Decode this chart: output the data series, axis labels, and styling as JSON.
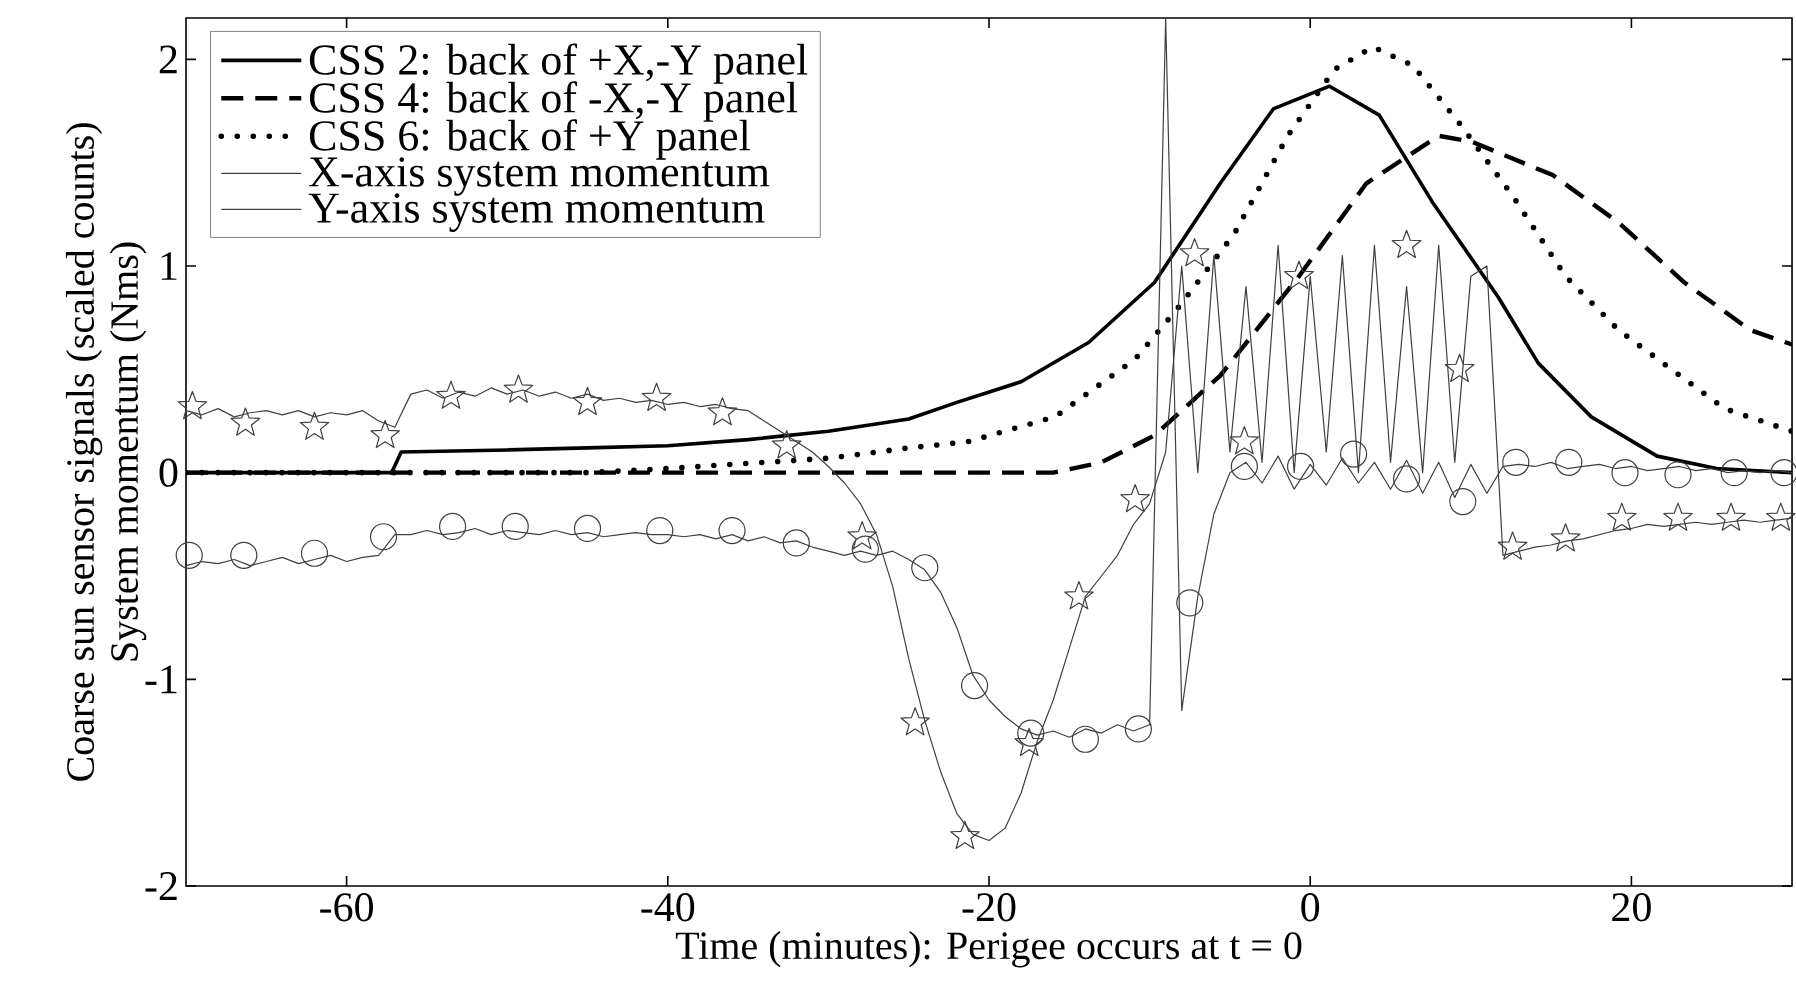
{
  "chart_data": {
    "type": "line",
    "xlabel": "Time (minutes): Perigee occurs at t = 0",
    "ylabel": [
      "Coarse sun sensor signals (scaled counts)",
      "System momentum (Nms)"
    ],
    "xlim": [
      -70,
      30
    ],
    "ylim": [
      -2,
      2.2
    ],
    "xticks": [
      -60,
      -40,
      -20,
      0,
      20
    ],
    "yticks": [
      -2,
      -1,
      0,
      1,
      2
    ],
    "grid": false,
    "legend": "top left",
    "series": [
      {
        "name": "CSS 2: back of +X,-Y panel",
        "color": "#000000",
        "line_style": "solid",
        "marker": "none",
        "x": [
          -70,
          -57.2,
          -56.6,
          -50,
          -45,
          -40,
          -35,
          -30,
          -25,
          -22,
          -18,
          -13.8,
          -9.7,
          -5.6,
          -2.3,
          1.2,
          4.3,
          7.6,
          11.7,
          14.2,
          17.5,
          21.6,
          25.3,
          30
        ],
        "values": [
          0,
          0,
          0.1,
          0.11,
          0.12,
          0.13,
          0.16,
          0.2,
          0.26,
          0.34,
          0.44,
          0.63,
          0.92,
          1.4,
          1.76,
          1.87,
          1.73,
          1.31,
          0.85,
          0.53,
          0.27,
          0.08,
          0.02,
          0
        ]
      },
      {
        "name": "CSS 4: back of -X,-Y panel",
        "color": "#000000",
        "line_style": "dashed",
        "marker": "none",
        "x": [
          -70,
          -16,
          -13,
          -9.7,
          -5.6,
          -0.7,
          3.5,
          8,
          10.1,
          12.6,
          15.1,
          19.2,
          23.3,
          27.4,
          30
        ],
        "values": [
          0,
          0,
          0.05,
          0.18,
          0.47,
          0.95,
          1.4,
          1.63,
          1.6,
          1.52,
          1.44,
          1.21,
          0.92,
          0.69,
          0.62
        ]
      },
      {
        "name": "CSS 6: back of +Y panel",
        "color": "#000000",
        "line_style": "dotted",
        "marker": "none",
        "x": [
          -70,
          -45,
          -40,
          -30,
          -25,
          -21.3,
          -15.9,
          -10.9,
          -8.1,
          -4.7,
          -1.4,
          1.5,
          3.9,
          6.4,
          9.3,
          12.6,
          15.9,
          19.2,
          22.5,
          25.8,
          30
        ],
        "values": [
          0,
          0,
          0.02,
          0.07,
          0.12,
          0.15,
          0.27,
          0.55,
          0.81,
          1.16,
          1.63,
          1.95,
          2.06,
          1.97,
          1.69,
          1.34,
          0.95,
          0.69,
          0.5,
          0.31,
          0.2
        ]
      },
      {
        "color": "#404040",
        "line_style": "solid",
        "marker": "none",
        "x": [
          -70,
          -69,
          -68,
          -67,
          -66,
          -65,
          -64,
          -63,
          -62,
          -61,
          -60,
          -59,
          -58,
          -57,
          -56,
          -55,
          -54,
          -53,
          -52,
          -51,
          -50,
          -49,
          -48,
          -47,
          -46,
          -45,
          -44,
          -43,
          -42,
          -41,
          -40,
          -39,
          -38,
          -37,
          -36,
          -35,
          -34,
          -33,
          -32,
          -31,
          -30,
          -29,
          -28,
          -27,
          -26,
          -25,
          -24,
          -23,
          -22,
          -21,
          -20,
          -19,
          -18,
          -17,
          -16,
          -15,
          -14,
          -13,
          -12,
          -11,
          -10,
          -9,
          -8,
          -7,
          -6,
          -5,
          -4,
          -3,
          -2,
          -1,
          0,
          1,
          2,
          3,
          4,
          5,
          6,
          7,
          8,
          9,
          10,
          11,
          12,
          13,
          14,
          15,
          16,
          17,
          18,
          19,
          20,
          21,
          22,
          23,
          24,
          25,
          26,
          27,
          28,
          29,
          30
        ],
        "values": [
          -0.45,
          -0.43,
          -0.44,
          -0.42,
          -0.45,
          -0.43,
          -0.41,
          -0.44,
          -0.42,
          -0.4,
          -0.43,
          -0.41,
          -0.4,
          -0.3,
          -0.3,
          -0.28,
          -0.3,
          -0.29,
          -0.27,
          -0.3,
          -0.28,
          -0.29,
          -0.3,
          -0.28,
          -0.3,
          -0.29,
          -0.31,
          -0.3,
          -0.29,
          -0.3,
          -0.3,
          -0.31,
          -0.3,
          -0.32,
          -0.3,
          -0.33,
          -0.31,
          -0.34,
          -0.33,
          -0.36,
          -0.38,
          -0.4,
          -0.38,
          -0.4,
          -0.38,
          -0.42,
          -0.47,
          -0.58,
          -0.75,
          -0.98,
          -1.1,
          -1.18,
          -1.24,
          -1.27,
          -1.25,
          -1.28,
          -1.24,
          -1.26,
          -1.22,
          -1.25,
          -1.22,
          2.2,
          -1.15,
          -0.6,
          -0.2,
          0,
          0.05,
          -0.05,
          0.08,
          -0.08,
          0.04,
          -0.06,
          0.07,
          -0.05,
          0.05,
          -0.08,
          0.06,
          -0.1,
          0.05,
          -0.12,
          0.04,
          -0.1,
          0.03,
          0.04,
          0.03,
          0.05,
          0.02,
          0.03,
          0.04,
          0.02,
          0.03,
          0.01,
          0.02,
          0.03,
          0.01,
          0.02,
          0,
          0.01,
          0,
          0.01,
          0
        ]
      },
      {
        "color": "#404040",
        "line_style": "solid",
        "marker": "none",
        "x": [
          -70,
          -69,
          -68,
          -67,
          -66,
          -65,
          -64,
          -63,
          -62,
          -61,
          -60,
          -59,
          -58,
          -57,
          -56,
          -55,
          -54,
          -53,
          -52,
          -51,
          -50,
          -49,
          -48,
          -47,
          -46,
          -45,
          -44,
          -43,
          -42,
          -41,
          -40,
          -39,
          -38,
          -37,
          -36,
          -35,
          -34,
          -33,
          -32,
          -31,
          -30,
          -29,
          -28,
          -27,
          -26,
          -25,
          -24,
          -23,
          -22,
          -21,
          -20,
          -19,
          -18,
          -17,
          -16,
          -15,
          -14,
          -13,
          -12,
          -11,
          -10,
          -9,
          -8,
          -7,
          -6,
          -5,
          -4,
          -3,
          -2,
          -1,
          0,
          1,
          2,
          3,
          4,
          5,
          6,
          7,
          8,
          9,
          10,
          11,
          12,
          13,
          14,
          15,
          16,
          17,
          18,
          19,
          20,
          21,
          22,
          23,
          24,
          25,
          26,
          27,
          28,
          29,
          30
        ],
        "values": [
          0.3,
          0.28,
          0.31,
          0.27,
          0.29,
          0.3,
          0.28,
          0.3,
          0.27,
          0.29,
          0.28,
          0.3,
          0.25,
          0.22,
          0.38,
          0.4,
          0.36,
          0.39,
          0.37,
          0.41,
          0.38,
          0.4,
          0.37,
          0.39,
          0.36,
          0.38,
          0.35,
          0.36,
          0.34,
          0.35,
          0.33,
          0.34,
          0.32,
          0.33,
          0.31,
          0.3,
          0.25,
          0.2,
          0.15,
          0.1,
          0.03,
          -0.05,
          -0.15,
          -0.3,
          -0.55,
          -0.9,
          -1.2,
          -1.45,
          -1.65,
          -1.75,
          -1.78,
          -1.72,
          -1.55,
          -1.3,
          -1.1,
          -0.85,
          -0.6,
          -0.5,
          -0.4,
          -0.25,
          -0.15,
          0.1,
          1,
          0,
          1.05,
          0.1,
          0.9,
          0.05,
          1.1,
          0,
          0.95,
          0.1,
          1.05,
          0,
          1.1,
          0.05,
          0.9,
          0,
          1.1,
          0.05,
          0.95,
          1,
          -0.4,
          -0.38,
          -0.36,
          -0.35,
          -0.33,
          -0.32,
          -0.3,
          -0.28,
          -0.27,
          -0.25,
          -0.26,
          -0.25,
          -0.24,
          -0.25,
          -0.24,
          -0.23,
          -0.24,
          -0.23,
          -0.22
        ]
      },
      {
        "name": "X-axis system momentum",
        "type": "scatter",
        "color": "#404040",
        "marker": "circle",
        "x": [
          -69.8,
          -66.4,
          -62,
          -57.7,
          -53.4,
          -49.5,
          -45,
          -40.5,
          -36,
          -32,
          -27.7,
          -24,
          -20.9,
          -17.4,
          -14,
          -10.7,
          -7.5,
          -4.1,
          -0.6,
          2.7,
          6,
          9.5,
          12.8,
          16.1,
          19.6,
          22.9,
          26.4,
          29.5
        ],
        "values": [
          -0.4,
          -0.4,
          -0.39,
          -0.31,
          -0.26,
          -0.26,
          -0.27,
          -0.28,
          -0.28,
          -0.34,
          -0.37,
          -0.46,
          -1.03,
          -1.26,
          -1.29,
          -1.24,
          -0.63,
          0.03,
          0.03,
          0.09,
          -0.03,
          -0.14,
          0.05,
          0.05,
          0,
          -0.01,
          0,
          0
        ]
      },
      {
        "name": "Y-axis system momentum",
        "type": "scatter",
        "color": "#404040",
        "marker": "star",
        "x": [
          -69.6,
          -66.3,
          -62,
          -57.6,
          -53.5,
          -49.3,
          -45,
          -40.7,
          -36.6,
          -32.6,
          -27.9,
          -24.6,
          -21.5,
          -17.5,
          -14.4,
          -10.9,
          -7.2,
          -4.1,
          -0.7,
          6,
          9.3,
          12.6,
          15.9,
          19.4,
          22.9,
          26.2,
          29.3
        ],
        "values": [
          0.32,
          0.24,
          0.22,
          0.18,
          0.37,
          0.4,
          0.34,
          0.36,
          0.29,
          0.13,
          -0.31,
          -1.21,
          -1.76,
          -1.31,
          -0.6,
          -0.13,
          1.06,
          0.15,
          0.95,
          1.1,
          0.5,
          -0.36,
          -0.32,
          -0.22,
          -0.22,
          -0.22,
          -0.22
        ]
      }
    ]
  }
}
